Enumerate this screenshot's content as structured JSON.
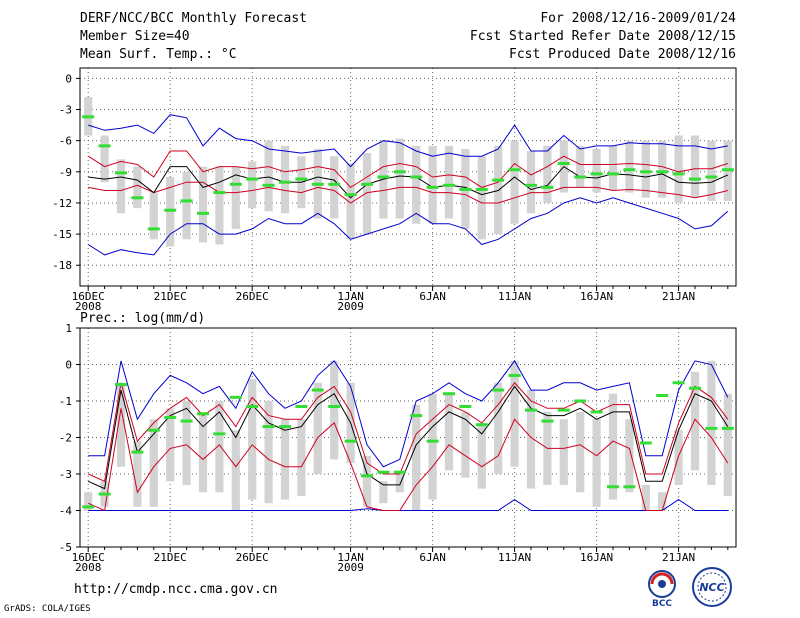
{
  "header": {
    "title": "DERF/NCC/BCC Monthly Forecast",
    "member_size": "Member Size=40",
    "variable": "Mean Surf. Temp.: °C",
    "period": "For 2008/12/16-2009/01/24",
    "started": "Fcst Started Refer Date 2008/12/15",
    "produced": "Fcst Produced Date 2008/12/16"
  },
  "footer": {
    "url": "http://cmdp.ncc.cma.gov.cn",
    "grads": "GrADS: COLA/IGES",
    "logo_bcc": "BCC",
    "logo_ncc": "NCC"
  },
  "colors": {
    "mean": "#000000",
    "spread": "#d00020",
    "extreme": "#0000d0",
    "box": "#d3d3d3",
    "observed": "#33dd33",
    "grid": "#666666"
  },
  "chart_data": [
    {
      "type": "line",
      "title": "Mean Surf. Temp.: °C",
      "x_tick_labels": [
        "16DEC\n2008",
        "21DEC",
        "26DEC",
        "1JAN\n2009",
        "6JAN",
        "11JAN",
        "16JAN",
        "21JAN"
      ],
      "x_tick_days": [
        0,
        5,
        10,
        16,
        21,
        26,
        31,
        36
      ],
      "y_ticks": [
        0,
        -3,
        -6,
        -9,
        -12,
        -15,
        -18
      ],
      "ylim": [
        -20,
        1
      ],
      "days": 40,
      "series": [
        {
          "name": "max",
          "values": [
            -16,
            -17,
            -16.5,
            -16.8,
            -17,
            -15,
            -14,
            -14,
            -15,
            -15,
            -14.5,
            -13.5,
            -14,
            -14,
            -13,
            -14,
            -15.5,
            -15,
            -14.5,
            -14,
            -13,
            -14,
            -14,
            -14.5,
            -16,
            -15.5,
            -14.5,
            -13.5,
            -13,
            -12,
            -11.5,
            -12,
            -11.5,
            -12,
            -12.5,
            -13,
            -13.5,
            -14.5,
            -14.2,
            -12.8
          ]
        },
        {
          "name": "p90_low",
          "values": [
            -10.5,
            -10.8,
            -10.8,
            -10.3,
            -11,
            -10.5,
            -10,
            -10,
            -11,
            -11,
            -10.8,
            -10.5,
            -10.8,
            -11,
            -10.5,
            -10.8,
            -12,
            -11,
            -10.8,
            -10.5,
            -10.5,
            -11,
            -11,
            -11.2,
            -12,
            -12,
            -11.5,
            -11,
            -11,
            -10.5,
            -10.5,
            -10.5,
            -10.8,
            -10.7,
            -10.8,
            -11,
            -11.2,
            -11.5,
            -11.2,
            -10.8
          ]
        },
        {
          "name": "mean",
          "values": [
            -9.5,
            -9.7,
            -9.5,
            -9.8,
            -11,
            -8.5,
            -8.5,
            -10.5,
            -10,
            -9.3,
            -9.7,
            -9.5,
            -10,
            -10,
            -9.5,
            -9.8,
            -11.5,
            -10.2,
            -9.7,
            -9.4,
            -9.5,
            -10.5,
            -10.3,
            -10.5,
            -11.2,
            -10.8,
            -9.5,
            -10.7,
            -10.3,
            -8.5,
            -9.5,
            -9.6,
            -9.2,
            -9.3,
            -9.5,
            -9.2,
            -10,
            -10.1,
            -10,
            -9.3
          ]
        },
        {
          "name": "p90_high",
          "values": [
            -7.5,
            -8.5,
            -8,
            -8.3,
            -9.5,
            -7,
            -7,
            -9,
            -8.5,
            -8.5,
            -8.7,
            -8.5,
            -9,
            -8.8,
            -8.5,
            -8.8,
            -10.5,
            -9.5,
            -8.5,
            -8.2,
            -8.5,
            -9.5,
            -9.3,
            -9.5,
            -10.5,
            -10,
            -8.2,
            -9.3,
            -8.5,
            -7.5,
            -8.3,
            -8.3,
            -8.3,
            -8.2,
            -8.3,
            -8.5,
            -9,
            -8.7,
            -8.7,
            -8.2
          ]
        },
        {
          "name": "min",
          "values": [
            -4.5,
            -5,
            -4.8,
            -4.5,
            -5.3,
            -3.5,
            -3.8,
            -6.5,
            -4.8,
            -5.8,
            -6,
            -6.8,
            -7,
            -7.2,
            -7,
            -6.8,
            -8.5,
            -6.8,
            -6,
            -6.2,
            -7,
            -7.5,
            -7.2,
            -7.5,
            -7.5,
            -6.8,
            -4.5,
            -7,
            -7,
            -5.5,
            -6.8,
            -6.5,
            -6.5,
            -6.2,
            -6.3,
            -6.3,
            -6.5,
            -6.5,
            -6.8,
            -6.5
          ]
        },
        {
          "name": "box_top",
          "values": [
            -1.8,
            -5.5,
            -7.8,
            -8.5,
            -11,
            -9.5,
            -9,
            -8.5,
            -8.5,
            -8.5,
            -8,
            -6,
            -6.5,
            -7.5,
            -6.8,
            -7.5,
            -8.2,
            -7.2,
            -6,
            -5.8,
            -6.5,
            -6.5,
            -6.5,
            -6.8,
            -7.5,
            -6.5,
            -6,
            -7,
            -6.5,
            -6,
            -6.5,
            -6.8,
            -6.5,
            -6,
            -6,
            -6,
            -5.5,
            -5.5,
            -6,
            -6
          ]
        },
        {
          "name": "box_bottom",
          "values": [
            -5.5,
            -10,
            -13,
            -12.5,
            -15.5,
            -16.2,
            -15.5,
            -15.8,
            -16,
            -14.5,
            -12.5,
            -12.8,
            -13,
            -12.5,
            -13.5,
            -13.5,
            -15.5,
            -15,
            -13.5,
            -13.5,
            -14,
            -14,
            -13.5,
            -14.5,
            -15.5,
            -15,
            -14,
            -13,
            -12,
            -11,
            -10.5,
            -11,
            -10.8,
            -11,
            -11.5,
            -11.5,
            -12,
            -11.5,
            -11.8,
            -11.8
          ]
        },
        {
          "name": "observed",
          "values": [
            -3.7,
            -6.5,
            -9.1,
            -11.5,
            -14.5,
            -12.7,
            -11.8,
            -13,
            -11,
            -10.2,
            -9.7,
            -10.3,
            -10,
            -9.7,
            -10.2,
            -10.2,
            -11.2,
            -10.2,
            -9.5,
            -9,
            -9.5,
            -10.5,
            -10.3,
            -10.7,
            -10.7,
            -9.8,
            -8.8,
            -10.3,
            -10.5,
            -8.2,
            -9.5,
            -9.2,
            -9.2,
            -8.8,
            -9,
            -9,
            -9.2,
            -9.7,
            -9.5,
            -8.8
          ]
        }
      ]
    },
    {
      "type": "line",
      "title": "Prec.: log(mm/d)",
      "x_tick_labels": [
        "16DEC\n2008",
        "21DEC",
        "26DEC",
        "1JAN\n2009",
        "6JAN",
        "11JAN",
        "16JAN",
        "21JAN"
      ],
      "x_tick_days": [
        0,
        5,
        10,
        16,
        21,
        26,
        31,
        36
      ],
      "y_ticks": [
        1,
        0,
        -1,
        -2,
        -3,
        -4,
        -5
      ],
      "ylim": [
        -5,
        1
      ],
      "days": 40,
      "series": [
        {
          "name": "min",
          "values": [
            -4,
            -4,
            -4,
            -4,
            -4,
            -4,
            -4,
            -4,
            -4,
            -4,
            -4,
            -4,
            -4,
            -4,
            -4,
            -4,
            -4,
            -3.95,
            -4,
            -4,
            -4,
            -4,
            -4,
            -4,
            -4,
            -4,
            -3.7,
            -4,
            -4,
            -4,
            -4,
            -4,
            -4,
            -4,
            -4,
            -4,
            -3.7,
            -4,
            -4,
            -4
          ]
        },
        {
          "name": "p90_low",
          "values": [
            -3.8,
            -4,
            -1.2,
            -3.5,
            -2.8,
            -2.3,
            -2.2,
            -2.6,
            -2.2,
            -2.8,
            -2.2,
            -2.6,
            -2.8,
            -2.8,
            -2,
            -1.6,
            -2.7,
            -3.9,
            -4,
            -4,
            -3.3,
            -2.8,
            -2.2,
            -2.5,
            -2.8,
            -2.5,
            -1.5,
            -2,
            -2.3,
            -2.3,
            -2.2,
            -2.5,
            -2.1,
            -2.3,
            -4,
            -4,
            -2.5,
            -1.5,
            -2,
            -2.7
          ]
        },
        {
          "name": "mean",
          "values": [
            -3.2,
            -3.4,
            -0.7,
            -2.4,
            -1.9,
            -1.4,
            -1.2,
            -1.7,
            -1.3,
            -2,
            -1.1,
            -1.6,
            -1.8,
            -1.7,
            -1.1,
            -0.8,
            -1.6,
            -3,
            -3.3,
            -3.3,
            -2.2,
            -1.7,
            -1.3,
            -1.5,
            -1.9,
            -1.3,
            -0.6,
            -1.2,
            -1.4,
            -1.4,
            -1.2,
            -1.5,
            -1.3,
            -1.3,
            -3.2,
            -3.2,
            -1.8,
            -0.8,
            -1,
            -1.7
          ]
        },
        {
          "name": "p90_high",
          "values": [
            -3,
            -3.2,
            -0.5,
            -2.1,
            -1.6,
            -1.2,
            -0.9,
            -1.4,
            -1.1,
            -1.7,
            -0.9,
            -1.4,
            -1.5,
            -1.5,
            -0.9,
            -0.6,
            -1.3,
            -2.7,
            -3,
            -3,
            -1.9,
            -1.5,
            -1.1,
            -1.3,
            -1.6,
            -1.1,
            -0.5,
            -1,
            -1.2,
            -1.2,
            -1,
            -1.3,
            -1.1,
            -1.1,
            -3,
            -3,
            -1.6,
            -0.6,
            -0.9,
            -1.5
          ]
        },
        {
          "name": "max",
          "values": [
            -2.5,
            -2.5,
            0.1,
            -1.5,
            -0.8,
            -0.3,
            -0.5,
            -0.8,
            -0.6,
            -1.2,
            -0.2,
            -0.8,
            -1.2,
            -1,
            -0.3,
            0.1,
            -0.6,
            -2.2,
            -2.8,
            -2.6,
            -1,
            -0.8,
            -0.5,
            -0.8,
            -1,
            -0.5,
            0.1,
            -0.7,
            -0.7,
            -0.5,
            -0.5,
            -0.7,
            -0.6,
            -0.5,
            -2.5,
            -2.5,
            -0.7,
            0.1,
            0,
            -0.9
          ]
        },
        {
          "name": "box_top",
          "values": [
            -3.5,
            -3.2,
            -0.5,
            -2.1,
            -1.5,
            -1.2,
            -1,
            -1.3,
            -1,
            -1.8,
            -0.4,
            -1,
            -1.5,
            -1.5,
            -0.5,
            0.1,
            -0.5,
            -2.5,
            -3.2,
            -3,
            -1.1,
            -0.8,
            -0.8,
            -1.3,
            -1.6,
            -0.5,
            0.1,
            -0.7,
            -1.3,
            -1.5,
            -1.3,
            -1.5,
            -0.8,
            -1.5,
            -3.3,
            -3.5,
            -1.8,
            -0.2,
            0.1,
            -0.8
          ]
        },
        {
          "name": "box_bottom",
          "values": [
            -4,
            -3.9,
            -2.8,
            -3.9,
            -3.9,
            -3.2,
            -3.3,
            -3.5,
            -3.5,
            -4,
            -3.7,
            -3.8,
            -3.7,
            -3.6,
            -3,
            -2.6,
            -2.7,
            -3.9,
            -3.8,
            -3.5,
            -4,
            -3.7,
            -2.9,
            -3.1,
            -3.4,
            -3,
            -2.8,
            -3.4,
            -3.3,
            -3.3,
            -3.5,
            -3.9,
            -3.7,
            -3.5,
            -4,
            -4,
            -3.3,
            -2.9,
            -3.3,
            -3.6
          ]
        },
        {
          "name": "observed",
          "values": [
            -3.9,
            -3.55,
            -0.55,
            -2.4,
            -1.8,
            -1.45,
            -1.55,
            -1.35,
            -1.9,
            -0.9,
            -1.15,
            -1.7,
            -1.7,
            -1.15,
            -0.7,
            -1.15,
            -2.1,
            -3.05,
            -2.95,
            -2.95,
            -1.4,
            -2.1,
            -0.8,
            -1.15,
            -1.65,
            -0.7,
            -0.3,
            -1.25,
            -1.55,
            -1.25,
            -1,
            -1.3,
            -3.35,
            -3.35,
            -2.15,
            -0.85,
            -0.5,
            -0.65,
            -1.75,
            -1.75
          ]
        }
      ]
    }
  ]
}
